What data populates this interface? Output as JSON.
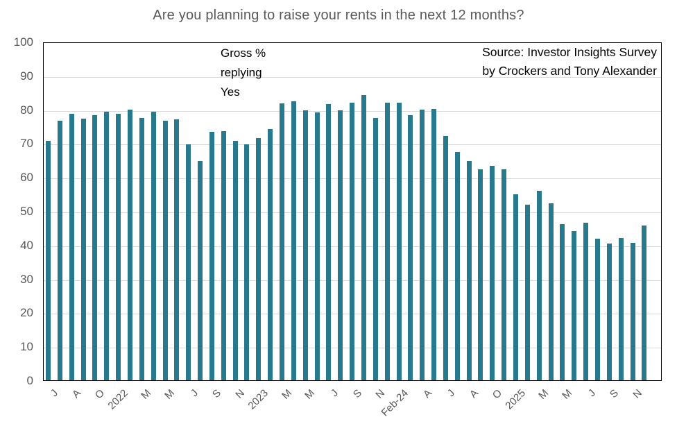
{
  "title": "Are you planning to raise your rents in the next 12 months?",
  "annotation": {
    "lines": [
      "Gross %",
      "replying",
      "Yes"
    ]
  },
  "source": {
    "lines": [
      "Source: Investor Insights Survey",
      "by Crockers and Tony Alexander"
    ]
  },
  "colors": {
    "bar": "#27798b",
    "title_text": "#595959",
    "axis_text": "#595959",
    "gridline": "#d9d9d9",
    "plot_border": "#000000",
    "annotation_text": "#000000"
  },
  "chart_data": {
    "type": "bar",
    "title": "Are you planning to raise your rents in the next 12 months?",
    "ylabel": "",
    "xlabel": "",
    "ylim": [
      0,
      100
    ],
    "yticks": [
      0,
      10,
      20,
      30,
      40,
      50,
      60,
      70,
      80,
      90,
      100
    ],
    "grid": "horizontal",
    "legend": "none",
    "bar_count": 52,
    "xtick_label_every": 2,
    "xtick_labels": [
      "J",
      "A",
      "O",
      "2022",
      "M",
      "M",
      "J",
      "S",
      "N",
      "2023",
      "M",
      "M",
      "J",
      "S",
      "N",
      "Feb-24",
      "A",
      "J",
      "A",
      "O",
      "2025",
      "M",
      "M",
      "J",
      "S",
      "N"
    ],
    "values": [
      70.7,
      76.7,
      78.7,
      77.3,
      78.2,
      79.4,
      78.6,
      79.9,
      77.5,
      79.3,
      76.7,
      77.1,
      69.7,
      64.8,
      73.3,
      73.6,
      70.7,
      69.6,
      71.6,
      74.1,
      81.8,
      82.4,
      79.8,
      79.2,
      81.6,
      79.8,
      81.9,
      84.3,
      77.4,
      81.9,
      81.9,
      78.2,
      80.0,
      80.1,
      72.1,
      67.5,
      64.7,
      62.3,
      63.3,
      62.4,
      55.0,
      51.9,
      55.9,
      52.3,
      46.2,
      44.0,
      46.6,
      41.8,
      40.4,
      42.1,
      40.6,
      45.7
    ]
  }
}
